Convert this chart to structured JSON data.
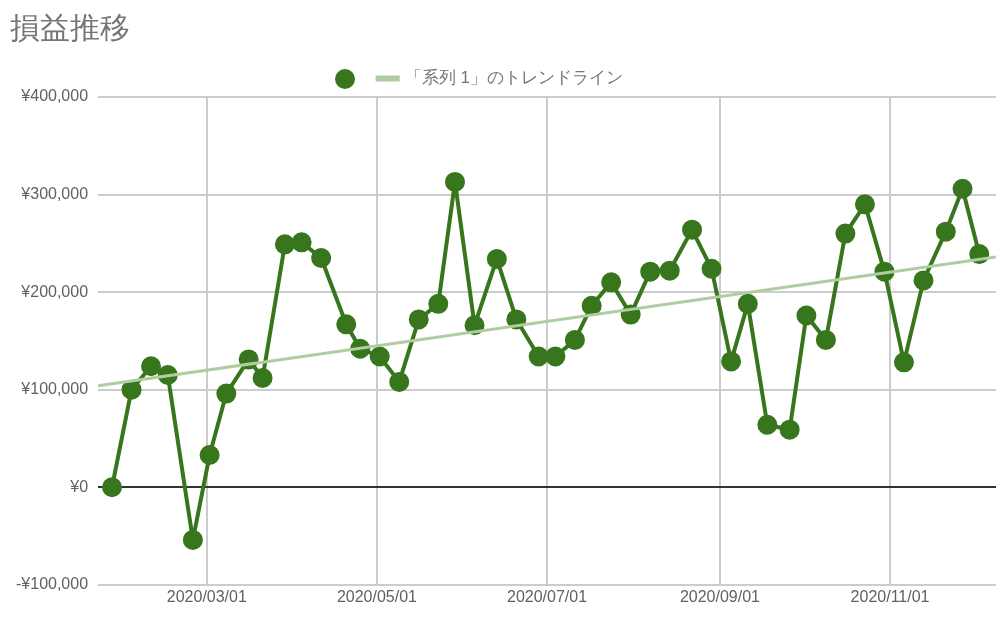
{
  "chart_data": {
    "type": "line",
    "title": "損益推移",
    "series": [
      {
        "color": "#38761d",
        "x": [
          "2020-01-27",
          "2020-02-03",
          "2020-02-10",
          "2020-02-16",
          "2020-02-25",
          "2020-03-02",
          "2020-03-08",
          "2020-03-16",
          "2020-03-21",
          "2020-03-29",
          "2020-04-04",
          "2020-04-11",
          "2020-04-20",
          "2020-04-25",
          "2020-05-02",
          "2020-05-09",
          "2020-05-16",
          "2020-05-23",
          "2020-05-29",
          "2020-06-05",
          "2020-06-13",
          "2020-06-20",
          "2020-06-28",
          "2020-07-04",
          "2020-07-11",
          "2020-07-17",
          "2020-07-24",
          "2020-07-31",
          "2020-08-07",
          "2020-08-14",
          "2020-08-22",
          "2020-08-29",
          "2020-09-05",
          "2020-09-11",
          "2020-09-18",
          "2020-09-26",
          "2020-10-02",
          "2020-10-09",
          "2020-10-16",
          "2020-10-23",
          "2020-10-30",
          "2020-11-06",
          "2020-11-13",
          "2020-11-21",
          "2020-11-27",
          "2020-12-03"
        ],
        "values": [
          0,
          100000,
          124000,
          115000,
          -54000,
          33000,
          96000,
          131000,
          112000,
          249000,
          251000,
          235000,
          167000,
          142000,
          134000,
          108000,
          172000,
          188000,
          313000,
          166000,
          234000,
          172000,
          134000,
          134000,
          151000,
          186000,
          210000,
          177000,
          221000,
          222000,
          264000,
          224000,
          129000,
          188000,
          64000,
          59000,
          176000,
          151000,
          260000,
          290000,
          221000,
          128000,
          212000,
          262000,
          306000,
          239000
        ]
      },
      {
        "name": "「系列 1」のトレンドライン",
        "type": "line",
        "color": "#b0cca0",
        "marker": "none",
        "x": [
          "2020-01-22",
          "2020-12-09"
        ],
        "values": [
          104000,
          236000
        ]
      }
    ],
    "xlim": [
      "2020-01-22",
      "2020-12-09"
    ],
    "xticks": [
      {
        "value": "2020-03-01",
        "label": "2020/03/01"
      },
      {
        "value": "2020-05-01",
        "label": "2020/05/01"
      },
      {
        "value": "2020-07-01",
        "label": "2020/07/01"
      },
      {
        "value": "2020-09-01",
        "label": "2020/09/01"
      },
      {
        "value": "2020-11-01",
        "label": "2020/11/01"
      }
    ],
    "ylim": [
      -100000,
      400000
    ],
    "yticks": [
      {
        "value": -100000,
        "label": "-¥100,000"
      },
      {
        "value": 0,
        "label": "¥0"
      },
      {
        "value": 100000,
        "label": "¥100,000"
      },
      {
        "value": 200000,
        "label": "¥200,000"
      },
      {
        "value": 300000,
        "label": "¥300,000"
      },
      {
        "value": 400000,
        "label": "¥400,000"
      }
    ],
    "grid": true,
    "legend": "top",
    "marker": "circle"
  }
}
